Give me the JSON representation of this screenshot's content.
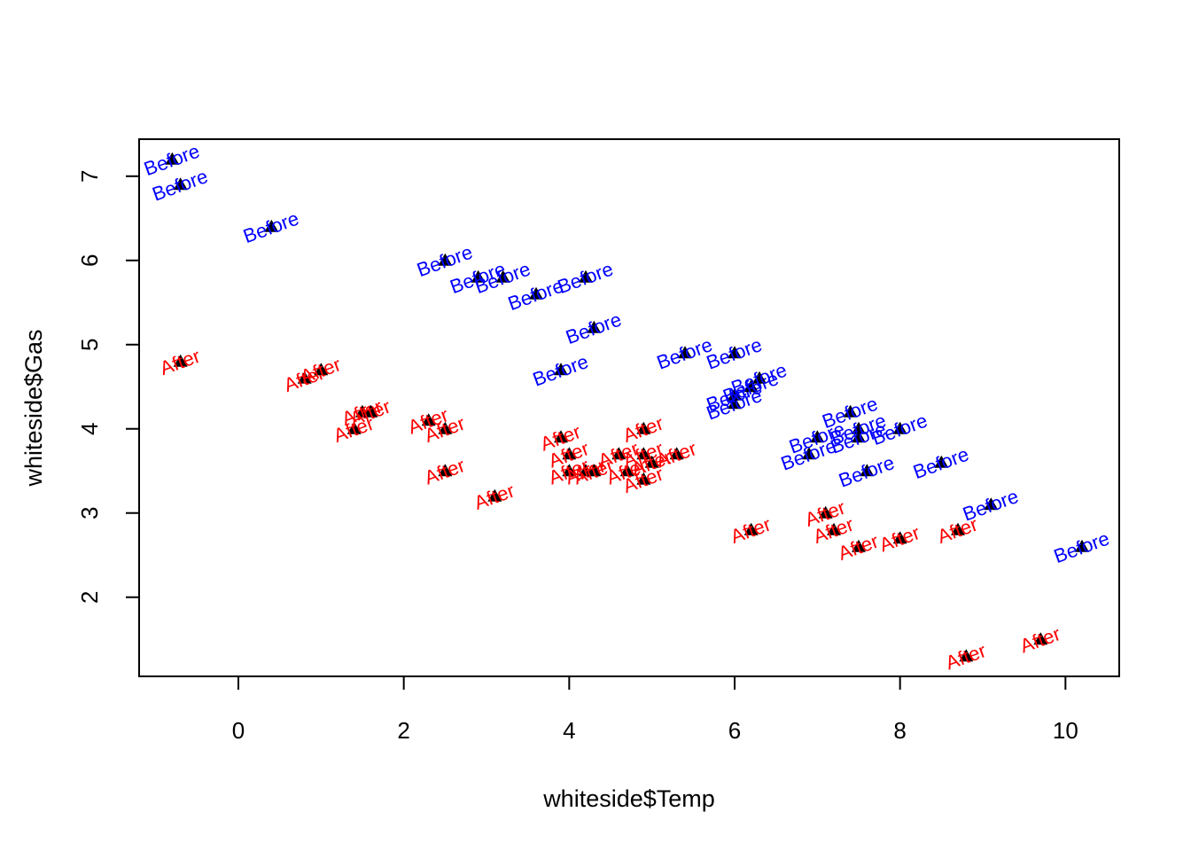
{
  "chart_data": {
    "type": "scatter",
    "title": "",
    "xlabel": "whiteside$Temp",
    "ylabel": "whiteside$Gas",
    "xlim": [
      -1.2,
      10.65
    ],
    "ylim": [
      1.06,
      7.44
    ],
    "x_ticks": [
      0,
      2,
      4,
      6,
      8,
      10
    ],
    "y_ticks": [
      2,
      3,
      4,
      5,
      6,
      7
    ],
    "marker": "filled-triangle",
    "marker_color": "#000000",
    "label_rotation_deg": 20,
    "grid": false,
    "legend": "none",
    "series": [
      {
        "name": "Before",
        "color": "#0000ff",
        "points": [
          [
            -0.8,
            7.2
          ],
          [
            -0.7,
            6.9
          ],
          [
            0.4,
            6.4
          ],
          [
            2.5,
            6.0
          ],
          [
            2.9,
            5.8
          ],
          [
            3.2,
            5.8
          ],
          [
            3.6,
            5.6
          ],
          [
            3.9,
            4.7
          ],
          [
            4.2,
            5.8
          ],
          [
            4.3,
            5.2
          ],
          [
            5.4,
            4.9
          ],
          [
            6.0,
            4.9
          ],
          [
            6.0,
            4.3
          ],
          [
            6.0,
            4.4
          ],
          [
            6.2,
            4.5
          ],
          [
            6.3,
            4.6
          ],
          [
            6.9,
            3.7
          ],
          [
            7.0,
            3.9
          ],
          [
            7.4,
            4.2
          ],
          [
            7.5,
            4.0
          ],
          [
            7.5,
            3.9
          ],
          [
            7.6,
            3.5
          ],
          [
            8.0,
            4.0
          ],
          [
            8.5,
            3.6
          ],
          [
            9.1,
            3.1
          ],
          [
            10.2,
            2.6
          ]
        ]
      },
      {
        "name": "After",
        "color": "#ff0000",
        "points": [
          [
            -0.7,
            4.8
          ],
          [
            0.8,
            4.6
          ],
          [
            1.0,
            4.7
          ],
          [
            1.4,
            4.0
          ],
          [
            1.5,
            4.2
          ],
          [
            1.6,
            4.2
          ],
          [
            2.3,
            4.1
          ],
          [
            2.5,
            4.0
          ],
          [
            2.5,
            3.5
          ],
          [
            3.1,
            3.2
          ],
          [
            3.9,
            3.9
          ],
          [
            4.0,
            3.7
          ],
          [
            4.0,
            3.5
          ],
          [
            4.2,
            3.5
          ],
          [
            4.3,
            3.5
          ],
          [
            4.6,
            3.7
          ],
          [
            4.7,
            3.5
          ],
          [
            4.9,
            4.0
          ],
          [
            4.9,
            3.7
          ],
          [
            4.9,
            3.4
          ],
          [
            5.0,
            3.6
          ],
          [
            5.3,
            3.7
          ],
          [
            6.2,
            2.8
          ],
          [
            7.1,
            3.0
          ],
          [
            7.2,
            2.8
          ],
          [
            7.5,
            2.6
          ],
          [
            8.0,
            2.7
          ],
          [
            8.7,
            2.8
          ],
          [
            8.8,
            1.3
          ],
          [
            9.7,
            1.5
          ]
        ]
      }
    ]
  }
}
